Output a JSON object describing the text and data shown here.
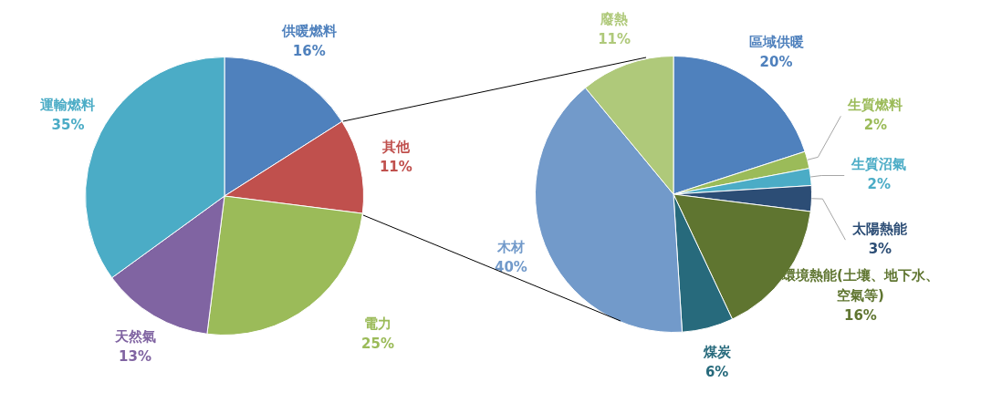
{
  "chart_data": [
    {
      "type": "pie",
      "categories": [
        "供暖燃料",
        "其他",
        "電力",
        "天然氣",
        "運輸燃料"
      ],
      "values": [
        16,
        11,
        25,
        13,
        35
      ],
      "colors": [
        "#4f81bd",
        "#c0504d",
        "#9bbb59",
        "#8064a2",
        "#4bacc6"
      ],
      "value_labels": [
        "16%",
        "11%",
        "25%",
        "13%",
        "35%"
      ]
    },
    {
      "type": "pie",
      "categories": [
        "區域供暖",
        "生質燃料",
        "生質沼氣",
        "太陽熱能",
        "環境熱能(土壤、地下水、空氣等)",
        "煤炭",
        "木材",
        "廢熱"
      ],
      "values": [
        20,
        2,
        2,
        3,
        16,
        6,
        40,
        11
      ],
      "colors": [
        "#4f81bd",
        "#9bbb59",
        "#4bacc6",
        "#2c4d75",
        "#5f7530",
        "#276a7c",
        "#729aca",
        "#afc97a"
      ],
      "value_labels": [
        "20%",
        "2%",
        "2%",
        "3%",
        "16%",
        "6%",
        "40%",
        "11%"
      ]
    }
  ]
}
